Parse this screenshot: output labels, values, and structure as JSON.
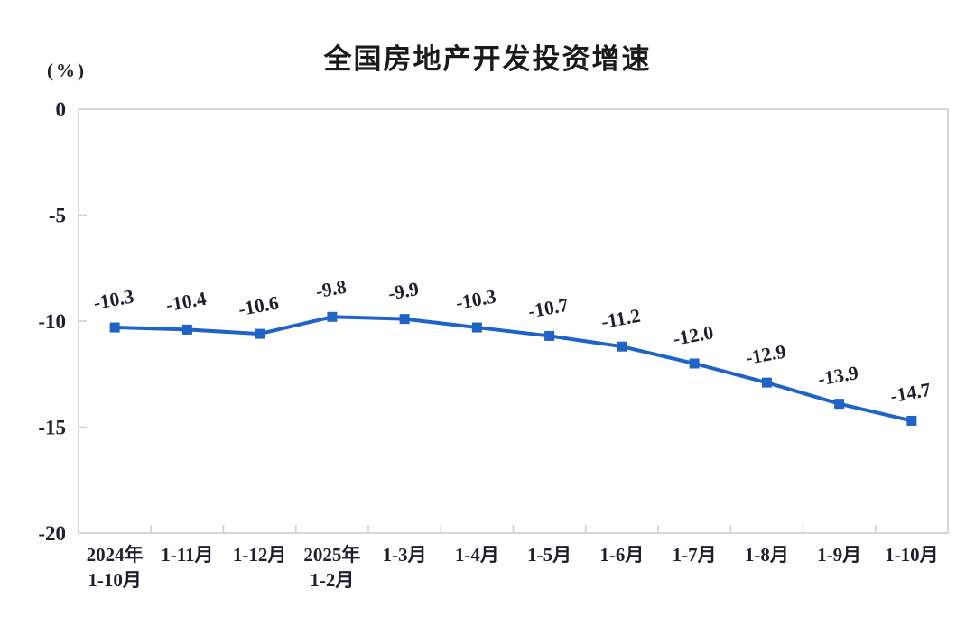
{
  "chart_data": {
    "type": "line",
    "title": "全国房地产开发投资增速",
    "unit_label": "(%)",
    "categories": [
      [
        "2024年",
        "1-10月"
      ],
      [
        "1-11月"
      ],
      [
        "1-12月"
      ],
      [
        "2025年",
        "1-2月"
      ],
      [
        "1-3月"
      ],
      [
        "1-4月"
      ],
      [
        "1-5月"
      ],
      [
        "1-6月"
      ],
      [
        "1-7月"
      ],
      [
        "1-8月"
      ],
      [
        "1-9月"
      ],
      [
        "1-10月"
      ]
    ],
    "values": [
      -10.3,
      -10.4,
      -10.6,
      -9.8,
      -9.9,
      -10.3,
      -10.7,
      -11.2,
      -12.0,
      -12.9,
      -13.9,
      -14.7
    ],
    "data_labels": [
      "-10.3",
      "-10.4",
      "-10.6",
      "-9.8",
      "-9.9",
      "-10.3",
      "-10.7",
      "-11.2",
      "-12.0",
      "-12.9",
      "-13.9",
      "-14.7"
    ],
    "y_ticks": [
      0,
      -5,
      -10,
      -15,
      -20
    ],
    "y_tick_labels": [
      "0",
      "-5",
      "-10",
      "-15",
      "-20"
    ],
    "ylim": [
      -20,
      0
    ],
    "xlabel": "",
    "ylabel": "",
    "grid": false,
    "legend": "none",
    "line_color": "#1f63c6",
    "marker": "square",
    "axis_color": "#cfcfcf",
    "text_color": "#1e1e2e"
  }
}
